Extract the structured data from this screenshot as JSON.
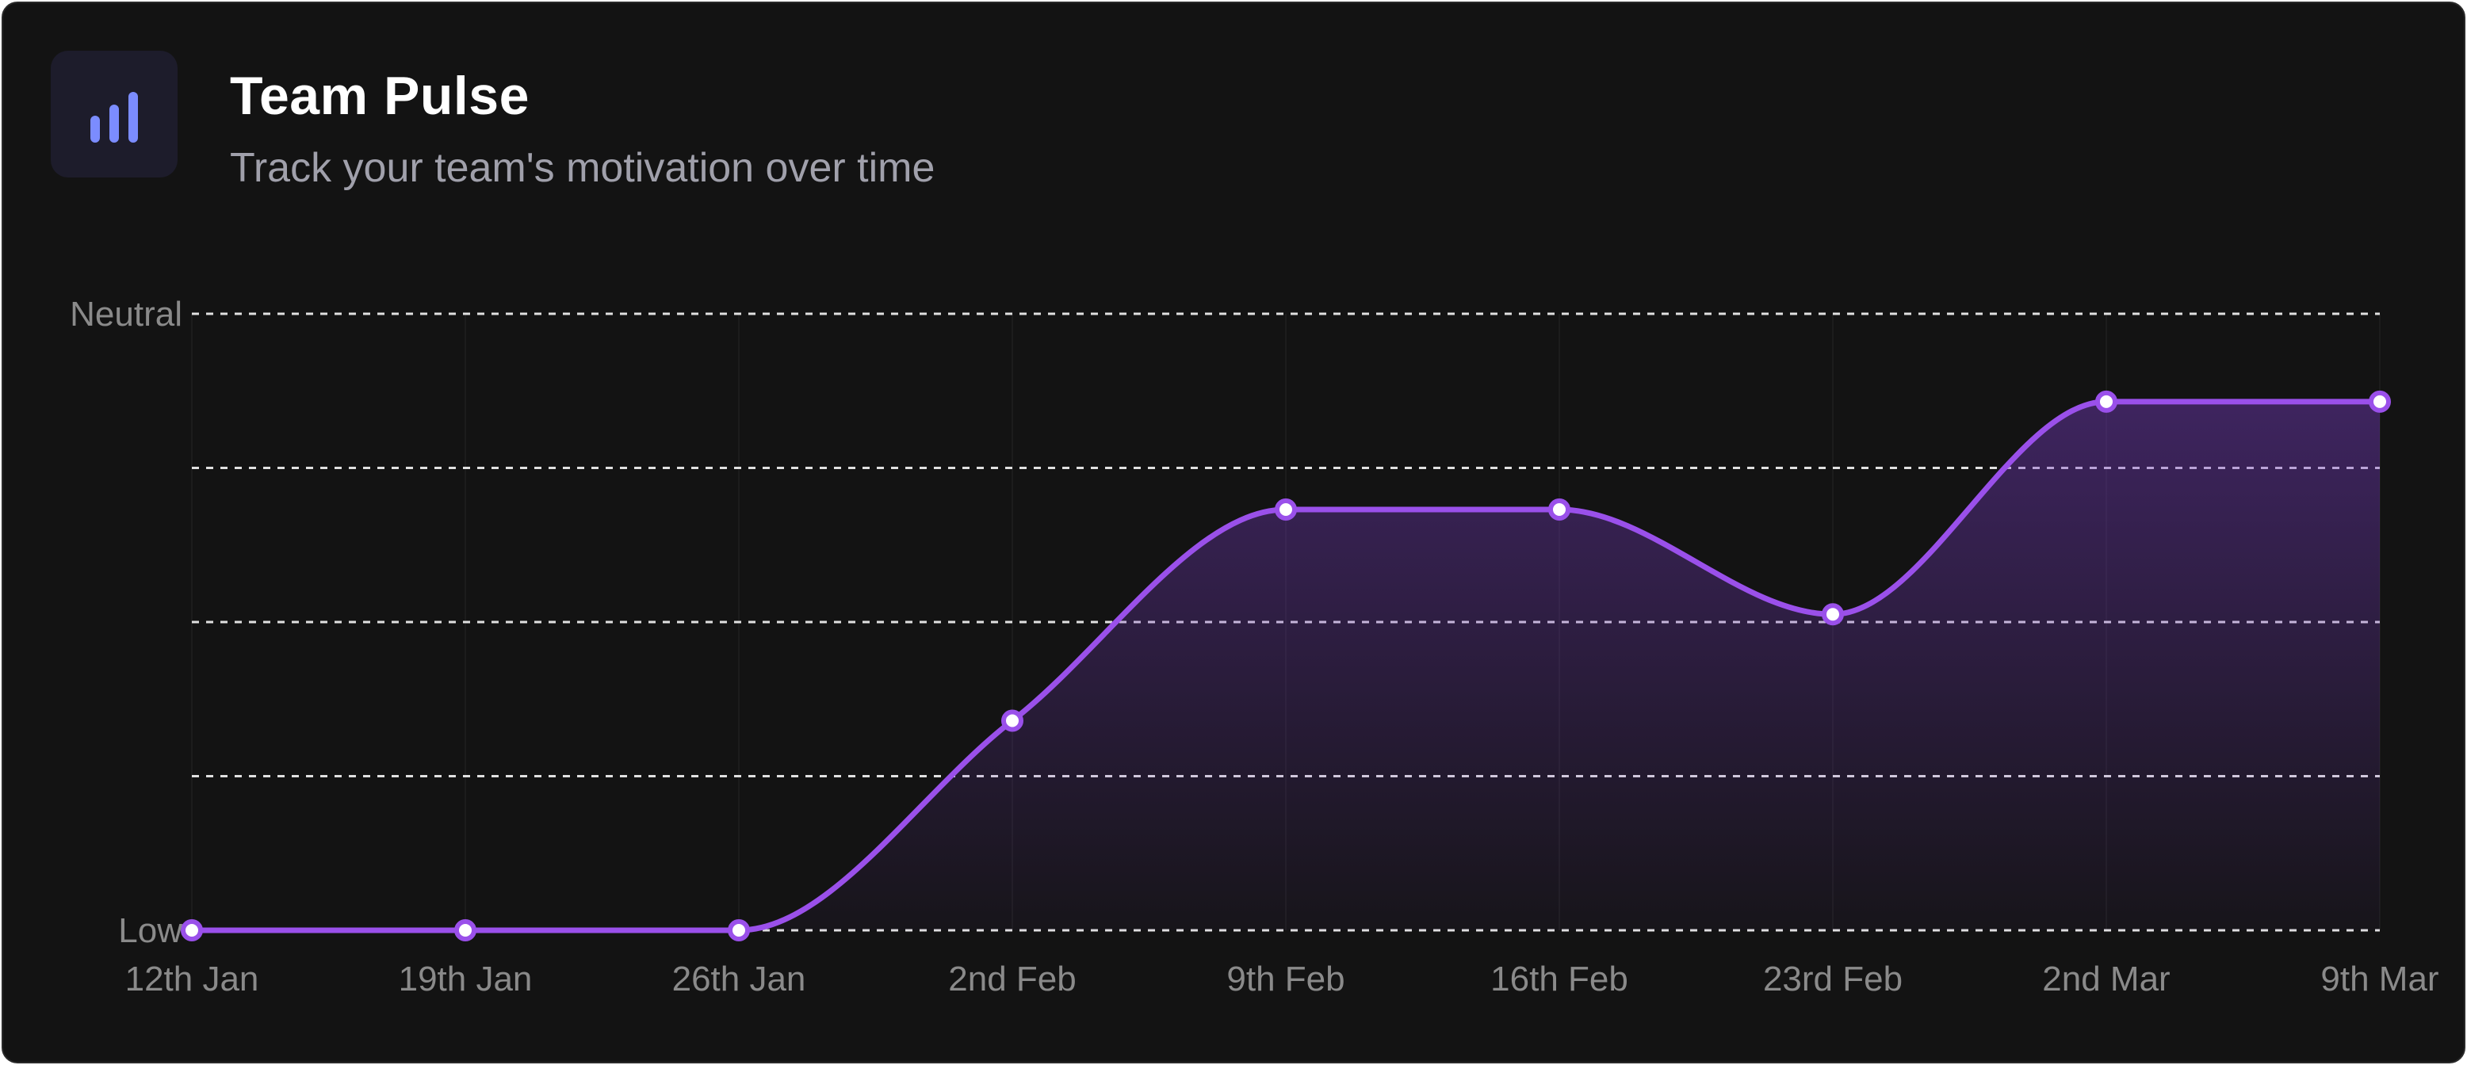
{
  "header": {
    "title": "Team Pulse",
    "subtitle": "Track your team's motivation over time",
    "icon": "bar-chart-icon"
  },
  "chart_data": {
    "type": "line",
    "title": "Team Pulse",
    "subtitle": "Track your team's motivation over time",
    "categories": [
      "12th Jan",
      "19th Jan",
      "26th Jan",
      "2nd Feb",
      "9th Feb",
      "16th Feb",
      "23rd Feb",
      "2nd Mar",
      "9th Mar"
    ],
    "series": [
      {
        "values": [
          0,
          0,
          0,
          1.36,
          2.73,
          2.73,
          2.05,
          3.43,
          3.43
        ]
      }
    ],
    "y_ticks": [
      {
        "value": 0,
        "label": "Low"
      },
      {
        "value": 1,
        "label": ""
      },
      {
        "value": 2,
        "label": ""
      },
      {
        "value": 3,
        "label": ""
      },
      {
        "value": 4,
        "label": "Neutral"
      }
    ],
    "ylim": [
      0,
      4
    ],
    "grid": true,
    "line_style": "smooth",
    "area_fill": true,
    "colors": {
      "line": "#9a50ea",
      "area": "#7a3cc8",
      "point_fill": "#ffffff",
      "grid": "#e0e0e0",
      "background": "#131313",
      "icon_accent": "#7b8cff"
    }
  }
}
